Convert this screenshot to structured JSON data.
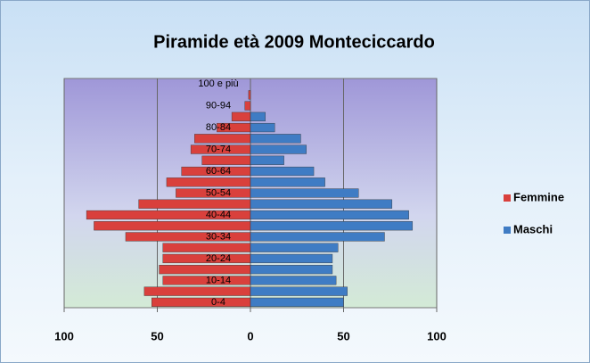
{
  "chart_data": {
    "type": "pyramid",
    "title": "Piramide età 2009 Monteciccardo",
    "categories": [
      "0-4",
      null,
      "10-14",
      null,
      "20-24",
      null,
      "30-34",
      null,
      "40-44",
      null,
      "50-54",
      null,
      "60-64",
      null,
      "70-74",
      null,
      "80-84",
      null,
      "90-94",
      null,
      "100 e più"
    ],
    "series": [
      {
        "name": "Femmine",
        "color": "#d9403c",
        "values": [
          -53,
          -57,
          -47,
          -49,
          -47,
          -47,
          -67,
          -84,
          -88,
          -60,
          -40,
          -45,
          -37,
          -26,
          -32,
          -30,
          -18,
          -10,
          -3,
          -1,
          0
        ]
      },
      {
        "name": "Maschi",
        "color": "#3f7cc4",
        "values": [
          50,
          52,
          46,
          44,
          44,
          47,
          72,
          87,
          85,
          76,
          58,
          40,
          34,
          18,
          30,
          27,
          13,
          8,
          0,
          0,
          0
        ]
      }
    ],
    "xlim": [
      -100,
      100
    ],
    "xticks": [
      {
        "value": -100,
        "label": "100"
      },
      {
        "value": -50,
        "label": "50"
      },
      0,
      50,
      100
    ],
    "grid": true,
    "legend": "right"
  }
}
